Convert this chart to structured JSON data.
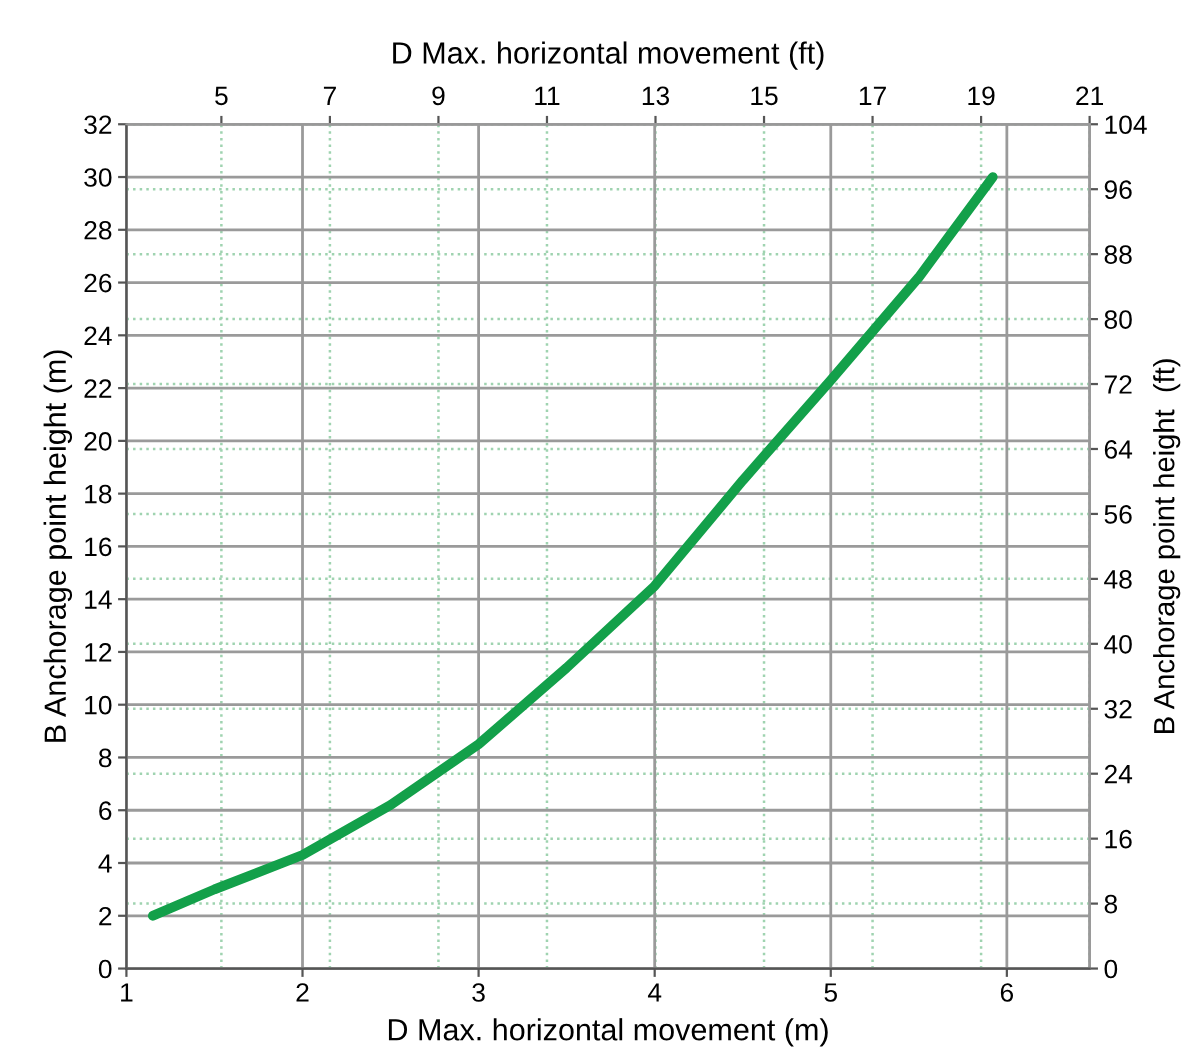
{
  "chart_data": {
    "type": "line",
    "xlabel": "D Max. horizontal movement (m)",
    "ylabel": "B Anchorage point height (m)",
    "x2label": "D Max. horizontal movement (ft)",
    "y2label": "B Anchorage point height  (ft)",
    "series": [
      {
        "color": "#13a04a",
        "x": [
          1.15,
          1.5,
          2,
          2.5,
          3,
          3.5,
          4,
          4.5,
          5,
          5.5,
          5.92
        ],
        "values": [
          2,
          3.0,
          4.3,
          6.2,
          8.5,
          11.4,
          14.5,
          18.5,
          22.3,
          26.2,
          30
        ]
      }
    ],
    "xlim": [
      1,
      6.47
    ],
    "xticks": [
      1,
      2,
      3,
      4,
      5,
      6
    ],
    "ylim": [
      0,
      32
    ],
    "yticks": [
      0,
      2,
      4,
      6,
      8,
      10,
      12,
      14,
      16,
      18,
      20,
      22,
      24,
      26,
      28,
      30,
      32
    ],
    "x2lim": [
      3.25,
      21
    ],
    "x2ticks": [
      5,
      7,
      9,
      11,
      13,
      15,
      17,
      19,
      21
    ],
    "y2lim": [
      0,
      104
    ],
    "y2ticks": [
      0,
      8,
      16,
      24,
      32,
      40,
      48,
      56,
      64,
      72,
      80,
      88,
      96,
      104
    ],
    "grid": true,
    "line_style": "solid",
    "marker": "none"
  }
}
